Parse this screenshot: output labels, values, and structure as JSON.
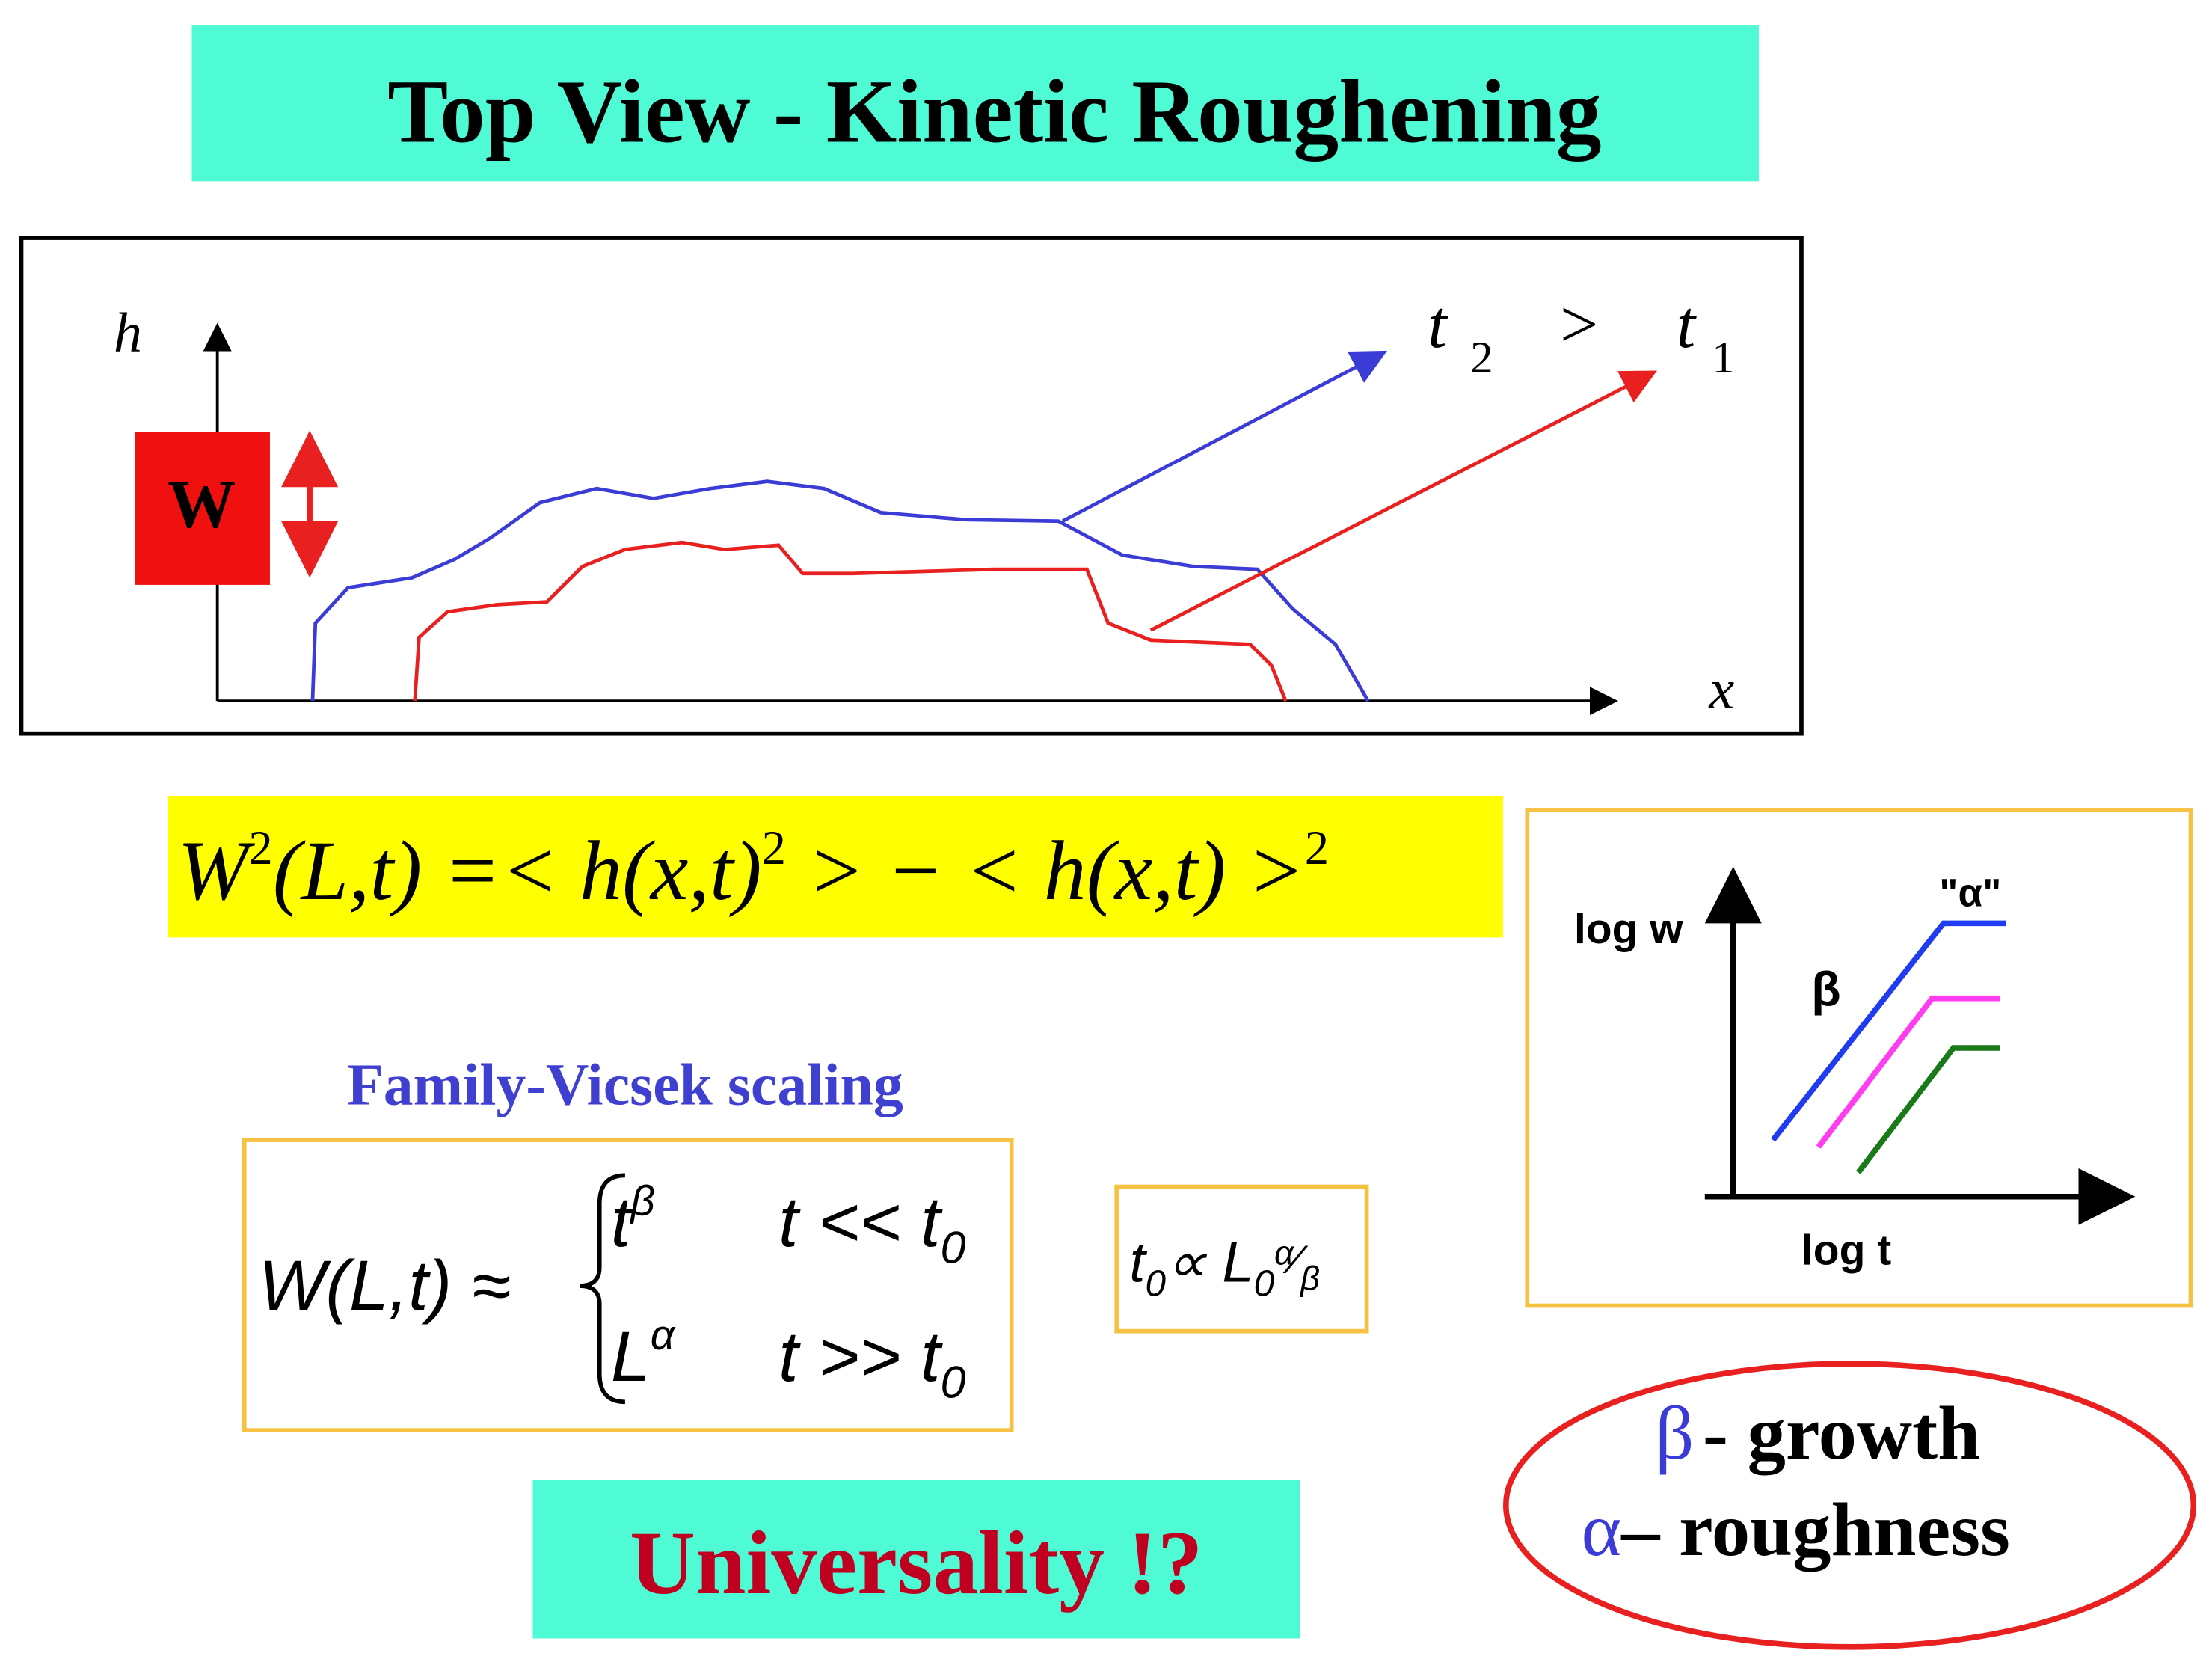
{
  "header": {
    "title": "Top View - Kinetic Roughening"
  },
  "diagram": {
    "y_axis_label": "h",
    "x_axis_label": "x",
    "width_label": "W",
    "time_labels": [
      "t",
      "2",
      ">",
      "t",
      "1"
    ]
  },
  "equation_width": [
    "W",
    "2",
    "(L,t) =< h(x,t)",
    "2",
    " > − < h(x,t) >",
    "2"
  ],
  "scaling": {
    "title": "Family-Vicsek  scaling",
    "lhs": "W(L,t) ≈",
    "case1": [
      "t",
      "β",
      "t << t",
      "0"
    ],
    "case2": [
      "L",
      "α",
      "t >> t",
      "0"
    ],
    "crossover": [
      "t",
      "0",
      "∝ L",
      "0",
      "α",
      "⁄",
      "β"
    ]
  },
  "inset": {
    "y_label": "log w",
    "x_label": "log t",
    "beta_label": "β",
    "alpha_label": "\"α\""
  },
  "exponents": {
    "beta_symbol": "β",
    "beta_text": "- growth",
    "alpha_symbol": "α",
    "alpha_text": "– roughness"
  },
  "footer": "Universality !?"
}
